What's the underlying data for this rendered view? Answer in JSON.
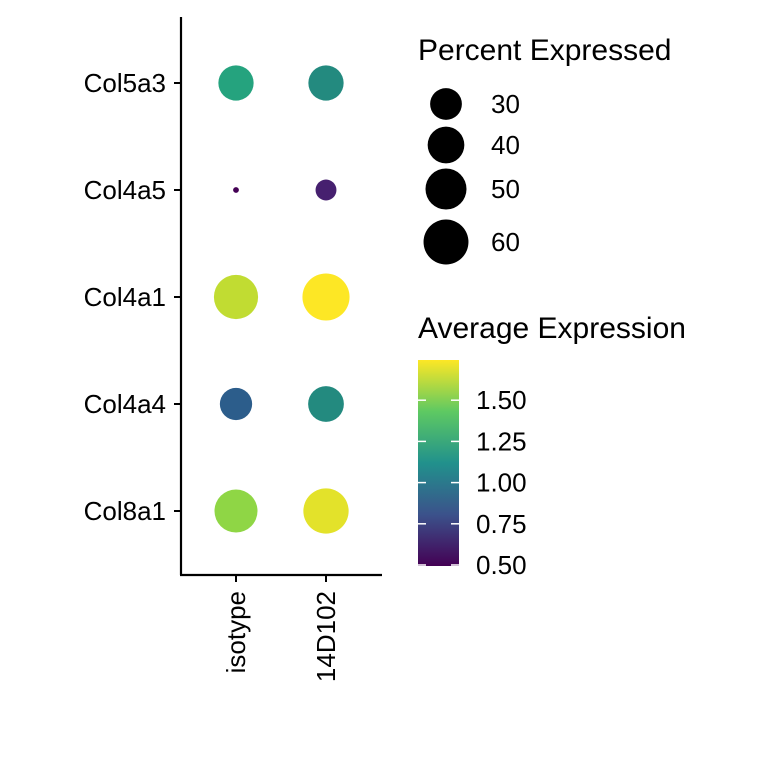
{
  "chart_data": {
    "type": "dot",
    "xlabel": "",
    "ylabel": "",
    "categories": [
      "isotype",
      "14D102"
    ],
    "genes": [
      "Col5a3",
      "Col4a5",
      "Col4a1",
      "Col4a4",
      "Col8a1"
    ],
    "points": [
      {
        "gene": "Col5a3",
        "group": "isotype",
        "pct_exp": 37,
        "avg_exp": 1.25,
        "color": "#25A37E"
      },
      {
        "gene": "Col5a3",
        "group": "14D102",
        "pct_exp": 37,
        "avg_exp": 1.13,
        "color": "#238A7F"
      },
      {
        "gene": "Col4a5",
        "group": "isotype",
        "pct_exp": 1,
        "avg_exp": 0.5,
        "color": "#440154"
      },
      {
        "gene": "Col4a5",
        "group": "14D102",
        "pct_exp": 13,
        "avg_exp": 0.58,
        "color": "#46206F"
      },
      {
        "gene": "Col4a1",
        "group": "isotype",
        "pct_exp": 58,
        "avg_exp": 1.6,
        "color": "#C1DC32"
      },
      {
        "gene": "Col4a1",
        "group": "14D102",
        "pct_exp": 66,
        "avg_exp": 1.72,
        "color": "#FDE725"
      },
      {
        "gene": "Col4a4",
        "group": "isotype",
        "pct_exp": 31,
        "avg_exp": 0.95,
        "color": "#2C5D8B"
      },
      {
        "gene": "Col4a4",
        "group": "14D102",
        "pct_exp": 38,
        "avg_exp": 1.13,
        "color": "#238A7F"
      },
      {
        "gene": "Col8a1",
        "group": "isotype",
        "pct_exp": 55,
        "avg_exp": 1.5,
        "color": "#8FD645"
      },
      {
        "gene": "Col8a1",
        "group": "14D102",
        "pct_exp": 61,
        "avg_exp": 1.68,
        "color": "#E3E22A"
      }
    ],
    "size_legend": {
      "title": "Percent Expressed",
      "entries": [
        {
          "label": "30",
          "value": 30
        },
        {
          "label": "40",
          "value": 40
        },
        {
          "label": "50",
          "value": 50
        },
        {
          "label": "60",
          "value": 60
        }
      ]
    },
    "color_legend": {
      "title": "Average Expression",
      "range": [
        0.5,
        1.75
      ],
      "colors": [
        "#440154",
        "#3B528B",
        "#21918C",
        "#5EC962",
        "#FDE725"
      ],
      "ticks": [
        {
          "label": "1.50",
          "value": 1.5
        },
        {
          "label": "1.25",
          "value": 1.25
        },
        {
          "label": "1.00",
          "value": 1.0
        },
        {
          "label": "0.75",
          "value": 0.75
        },
        {
          "label": "0.50",
          "value": 0.5
        }
      ]
    }
  }
}
